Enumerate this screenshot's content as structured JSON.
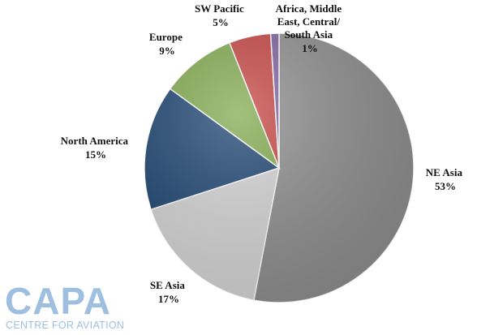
{
  "chart_data": {
    "type": "pie",
    "title": "",
    "slices": [
      {
        "label": "NE Asia",
        "value": 53,
        "value_label": "53%",
        "color": "#8c8c8c"
      },
      {
        "label": "SE Asia",
        "value": 17,
        "value_label": "17%",
        "color": "#d4d4d4"
      },
      {
        "label": "North America",
        "value": 15,
        "value_label": "15%",
        "color": "#17406e"
      },
      {
        "label": "Europe",
        "value": 9,
        "value_label": "9%",
        "color": "#7ea84a"
      },
      {
        "label": "SW Pacific",
        "value": 5,
        "value_label": "5%",
        "color": "#c4403d"
      },
      {
        "label": "Africa, Middle East, Central/ South Asia",
        "value": 1,
        "value_label": "1%",
        "color": "#7c5fa0"
      }
    ],
    "legend": "none"
  },
  "logo": {
    "name": "CAPA",
    "subtitle": "CENTRE FOR AVIATION"
  }
}
